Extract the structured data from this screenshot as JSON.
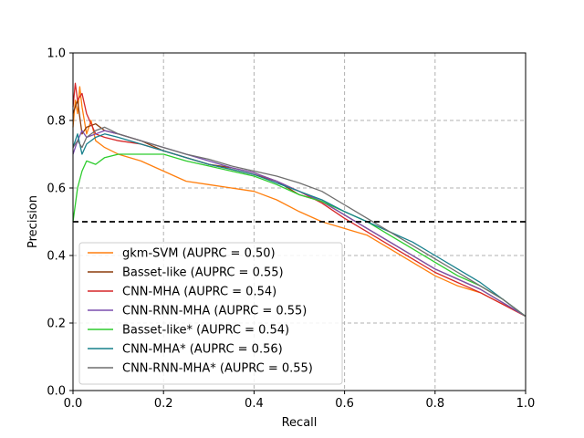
{
  "chart_data": {
    "type": "line",
    "xlabel": "Recall",
    "ylabel": "Precision",
    "xlim": [
      0.0,
      1.0
    ],
    "ylim": [
      0.0,
      1.0
    ],
    "xticks": [
      "0.0",
      "0.2",
      "0.4",
      "0.6",
      "0.8",
      "1.0"
    ],
    "yticks": [
      "0.0",
      "0.2",
      "0.4",
      "0.6",
      "0.8",
      "1.0"
    ],
    "grid": true,
    "legend_position": "lower-left",
    "baseline": {
      "y": 0.5,
      "color": "#000000",
      "style": "dashed"
    },
    "series": [
      {
        "name": "gkm-SVM (AUPRC = 0.50)",
        "color": "#ff7f0e",
        "points": [
          [
            0.0,
            0.78
          ],
          [
            0.005,
            0.86
          ],
          [
            0.01,
            0.82
          ],
          [
            0.015,
            0.9
          ],
          [
            0.02,
            0.84
          ],
          [
            0.03,
            0.76
          ],
          [
            0.04,
            0.8
          ],
          [
            0.05,
            0.74
          ],
          [
            0.07,
            0.72
          ],
          [
            0.1,
            0.7
          ],
          [
            0.15,
            0.68
          ],
          [
            0.2,
            0.65
          ],
          [
            0.25,
            0.62
          ],
          [
            0.3,
            0.61
          ],
          [
            0.35,
            0.6
          ],
          [
            0.4,
            0.59
          ],
          [
            0.45,
            0.565
          ],
          [
            0.5,
            0.53
          ],
          [
            0.55,
            0.5
          ],
          [
            0.6,
            0.48
          ],
          [
            0.65,
            0.46
          ],
          [
            0.7,
            0.42
          ],
          [
            0.75,
            0.38
          ],
          [
            0.8,
            0.34
          ],
          [
            0.85,
            0.31
          ],
          [
            0.9,
            0.29
          ],
          [
            0.95,
            0.255
          ],
          [
            1.0,
            0.22
          ]
        ]
      },
      {
        "name": "Basset-like (AUPRC = 0.55)",
        "color": "#8c3b0c",
        "points": [
          [
            0.0,
            0.82
          ],
          [
            0.01,
            0.86
          ],
          [
            0.02,
            0.76
          ],
          [
            0.03,
            0.78
          ],
          [
            0.05,
            0.79
          ],
          [
            0.07,
            0.77
          ],
          [
            0.1,
            0.76
          ],
          [
            0.15,
            0.74
          ],
          [
            0.2,
            0.71
          ],
          [
            0.25,
            0.69
          ],
          [
            0.3,
            0.67
          ],
          [
            0.35,
            0.66
          ],
          [
            0.4,
            0.645
          ],
          [
            0.45,
            0.62
          ],
          [
            0.5,
            0.58
          ],
          [
            0.55,
            0.56
          ],
          [
            0.6,
            0.52
          ],
          [
            0.65,
            0.48
          ],
          [
            0.7,
            0.44
          ],
          [
            0.75,
            0.4
          ],
          [
            0.8,
            0.36
          ],
          [
            0.85,
            0.33
          ],
          [
            0.9,
            0.3
          ],
          [
            0.95,
            0.26
          ],
          [
            1.0,
            0.22
          ]
        ]
      },
      {
        "name": "CNN-MHA (AUPRC = 0.54)",
        "color": "#d62728",
        "points": [
          [
            0.0,
            0.84
          ],
          [
            0.005,
            0.91
          ],
          [
            0.01,
            0.86
          ],
          [
            0.02,
            0.88
          ],
          [
            0.03,
            0.82
          ],
          [
            0.05,
            0.76
          ],
          [
            0.07,
            0.75
          ],
          [
            0.1,
            0.74
          ],
          [
            0.15,
            0.73
          ],
          [
            0.2,
            0.71
          ],
          [
            0.25,
            0.69
          ],
          [
            0.3,
            0.67
          ],
          [
            0.35,
            0.655
          ],
          [
            0.4,
            0.64
          ],
          [
            0.45,
            0.62
          ],
          [
            0.5,
            0.59
          ],
          [
            0.55,
            0.555
          ],
          [
            0.6,
            0.51
          ],
          [
            0.65,
            0.47
          ],
          [
            0.7,
            0.43
          ],
          [
            0.75,
            0.39
          ],
          [
            0.8,
            0.35
          ],
          [
            0.85,
            0.32
          ],
          [
            0.9,
            0.29
          ],
          [
            0.95,
            0.255
          ],
          [
            1.0,
            0.22
          ]
        ]
      },
      {
        "name": "CNN-RNN-MHA (AUPRC = 0.55)",
        "color": "#7b4fae",
        "points": [
          [
            0.0,
            0.7
          ],
          [
            0.01,
            0.74
          ],
          [
            0.02,
            0.77
          ],
          [
            0.03,
            0.75
          ],
          [
            0.05,
            0.76
          ],
          [
            0.07,
            0.77
          ],
          [
            0.1,
            0.76
          ],
          [
            0.15,
            0.74
          ],
          [
            0.2,
            0.72
          ],
          [
            0.25,
            0.7
          ],
          [
            0.3,
            0.68
          ],
          [
            0.35,
            0.66
          ],
          [
            0.4,
            0.645
          ],
          [
            0.45,
            0.62
          ],
          [
            0.5,
            0.59
          ],
          [
            0.55,
            0.56
          ],
          [
            0.6,
            0.52
          ],
          [
            0.65,
            0.48
          ],
          [
            0.7,
            0.44
          ],
          [
            0.75,
            0.4
          ],
          [
            0.8,
            0.36
          ],
          [
            0.85,
            0.33
          ],
          [
            0.9,
            0.3
          ],
          [
            0.95,
            0.26
          ],
          [
            1.0,
            0.22
          ]
        ]
      },
      {
        "name": "Basset-like* (AUPRC = 0.54)",
        "color": "#2ecc2e",
        "points": [
          [
            0.0,
            0.5
          ],
          [
            0.005,
            0.55
          ],
          [
            0.01,
            0.6
          ],
          [
            0.02,
            0.65
          ],
          [
            0.03,
            0.68
          ],
          [
            0.05,
            0.67
          ],
          [
            0.07,
            0.69
          ],
          [
            0.1,
            0.7
          ],
          [
            0.15,
            0.7
          ],
          [
            0.2,
            0.7
          ],
          [
            0.25,
            0.68
          ],
          [
            0.3,
            0.665
          ],
          [
            0.35,
            0.65
          ],
          [
            0.4,
            0.635
          ],
          [
            0.45,
            0.61
          ],
          [
            0.5,
            0.58
          ],
          [
            0.55,
            0.56
          ],
          [
            0.6,
            0.53
          ],
          [
            0.65,
            0.5
          ],
          [
            0.7,
            0.46
          ],
          [
            0.75,
            0.42
          ],
          [
            0.8,
            0.38
          ],
          [
            0.85,
            0.34
          ],
          [
            0.9,
            0.31
          ],
          [
            0.95,
            0.27
          ],
          [
            1.0,
            0.22
          ]
        ]
      },
      {
        "name": "CNN-MHA* (AUPRC = 0.56)",
        "color": "#17808c",
        "points": [
          [
            0.0,
            0.72
          ],
          [
            0.01,
            0.76
          ],
          [
            0.02,
            0.7
          ],
          [
            0.03,
            0.73
          ],
          [
            0.05,
            0.75
          ],
          [
            0.07,
            0.76
          ],
          [
            0.1,
            0.75
          ],
          [
            0.15,
            0.73
          ],
          [
            0.2,
            0.71
          ],
          [
            0.25,
            0.69
          ],
          [
            0.3,
            0.67
          ],
          [
            0.35,
            0.655
          ],
          [
            0.4,
            0.64
          ],
          [
            0.45,
            0.615
          ],
          [
            0.5,
            0.59
          ],
          [
            0.55,
            0.565
          ],
          [
            0.6,
            0.53
          ],
          [
            0.65,
            0.5
          ],
          [
            0.7,
            0.47
          ],
          [
            0.75,
            0.44
          ],
          [
            0.8,
            0.4
          ],
          [
            0.85,
            0.36
          ],
          [
            0.9,
            0.32
          ],
          [
            0.95,
            0.27
          ],
          [
            1.0,
            0.22
          ]
        ]
      },
      {
        "name": "CNN-RNN-MHA* (AUPRC = 0.55)",
        "color": "#6e6e6e",
        "points": [
          [
            0.0,
            0.72
          ],
          [
            0.01,
            0.74
          ],
          [
            0.02,
            0.72
          ],
          [
            0.03,
            0.75
          ],
          [
            0.05,
            0.77
          ],
          [
            0.07,
            0.78
          ],
          [
            0.1,
            0.76
          ],
          [
            0.15,
            0.74
          ],
          [
            0.2,
            0.72
          ],
          [
            0.25,
            0.7
          ],
          [
            0.3,
            0.685
          ],
          [
            0.35,
            0.665
          ],
          [
            0.4,
            0.65
          ],
          [
            0.45,
            0.635
          ],
          [
            0.5,
            0.615
          ],
          [
            0.55,
            0.59
          ],
          [
            0.6,
            0.55
          ],
          [
            0.65,
            0.51
          ],
          [
            0.7,
            0.47
          ],
          [
            0.75,
            0.43
          ],
          [
            0.8,
            0.39
          ],
          [
            0.85,
            0.35
          ],
          [
            0.9,
            0.31
          ],
          [
            0.95,
            0.27
          ],
          [
            1.0,
            0.22
          ]
        ]
      }
    ]
  }
}
